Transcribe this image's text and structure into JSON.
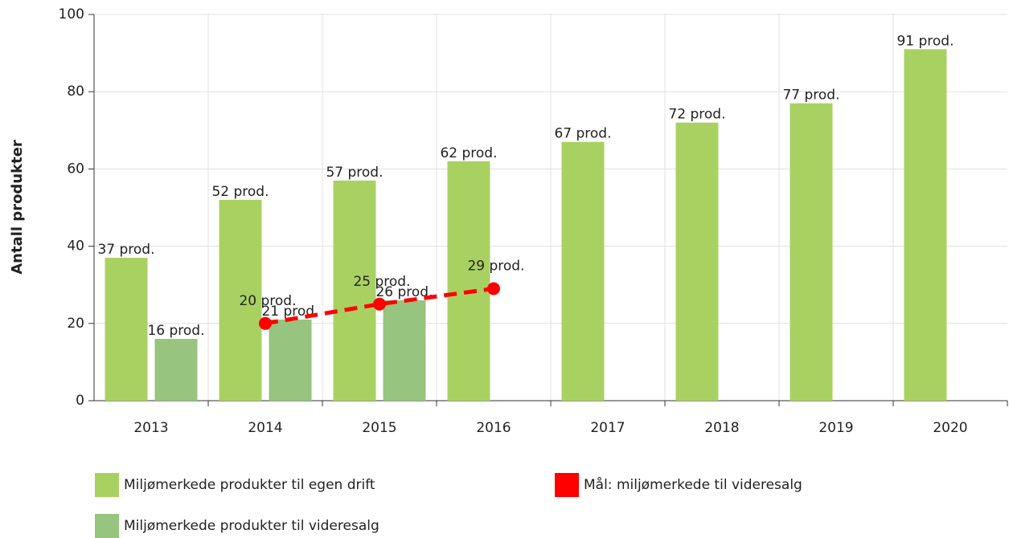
{
  "chart_data": {
    "type": "bar",
    "y_label": "Antall produkter",
    "categories": [
      "2013",
      "2014",
      "2015",
      "2016",
      "2017",
      "2018",
      "2019",
      "2020"
    ],
    "series": [
      {
        "name": "Miljømerkede produkter til egen drift",
        "color": "#a9d162",
        "type": "bar",
        "values": [
          37,
          52,
          57,
          62,
          67,
          72,
          77,
          91
        ],
        "value_labels": [
          "37 prod.",
          "52 prod.",
          "57 prod.",
          "62 prod.",
          "67 prod.",
          "72 prod.",
          "77 prod.",
          "91 prod."
        ]
      },
      {
        "name": "Miljømerkede produkter til videresalg",
        "color": "#97c47e",
        "type": "bar",
        "values": [
          16,
          21,
          26,
          null,
          null,
          null,
          null,
          null
        ],
        "value_labels": [
          "16 prod.",
          "21 prod.",
          "26 prod.",
          null,
          null,
          null,
          null,
          null
        ]
      },
      {
        "name": "Mål: miljømerkede til videresalg",
        "color": "#ff0000",
        "type": "line",
        "dashed": true,
        "values": [
          null,
          20,
          25,
          29,
          null,
          null,
          null,
          null
        ],
        "value_labels": [
          null,
          "20 prod.",
          "25 prod.",
          "29 prod.",
          null,
          null,
          null,
          null
        ]
      }
    ],
    "ylim": [
      0,
      100
    ],
    "yticks": [
      0,
      20,
      40,
      60,
      80,
      100
    ],
    "grid": true
  }
}
